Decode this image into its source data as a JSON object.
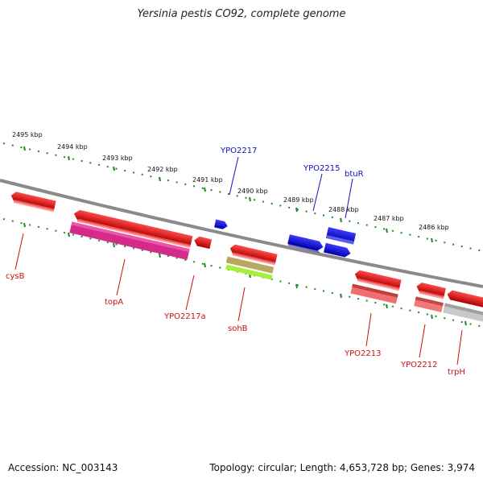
{
  "title": "Yersinia pestis CO92, complete genome",
  "footer": {
    "accession": "Accession: NC_003143",
    "stats": "Topology: circular; Length: 4,653,728 bp; Genes: 3,974"
  },
  "colors": {
    "forward_gene": "#0000ee",
    "reverse_gene": "#ee0000",
    "forward_label": "#1010c0",
    "reverse_label": "#cc1010",
    "tick": "#228822",
    "backbone": "#808080"
  },
  "scale": {
    "labels": [
      "2495 kbp",
      "2494 kbp",
      "2493 kbp",
      "2492 kbp",
      "2491 kbp",
      "2490 kbp",
      "2489 kbp",
      "2488 kbp",
      "2487 kbp",
      "2486 kbp"
    ]
  },
  "forward_labels": [
    {
      "name": "YPO2217"
    },
    {
      "name": "YPO2215"
    },
    {
      "name": "btuR"
    }
  ],
  "reverse_labels": [
    {
      "name": "cysB"
    },
    {
      "name": "topA"
    },
    {
      "name": "YPO2217a"
    },
    {
      "name": "sohB"
    },
    {
      "name": "YPO2213"
    },
    {
      "name": "YPO2212"
    },
    {
      "name": "trpH"
    }
  ]
}
